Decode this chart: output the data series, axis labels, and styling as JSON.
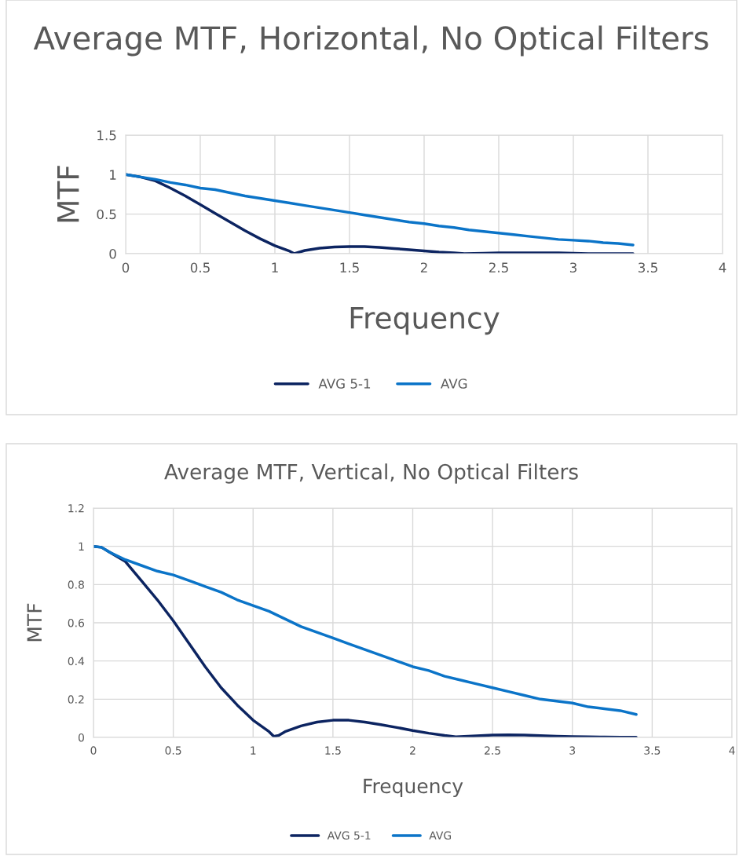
{
  "chart_data": [
    {
      "type": "line",
      "title": "Average MTF, Horizontal, No Optical Filters",
      "xlabel": "Frequency",
      "ylabel": "MTF",
      "xlim": [
        0,
        4
      ],
      "xticks": [
        0,
        0.5,
        1,
        1.5,
        2,
        2.5,
        3,
        3.5,
        4
      ],
      "ylim": [
        0,
        1.5
      ],
      "yticks": [
        0,
        0.5,
        1,
        1.5
      ],
      "grid": true,
      "legend": "bottom",
      "marker": "none",
      "line_style": "solid",
      "series": [
        {
          "name": "AVG 5-1",
          "color": "#0c2461",
          "x": [
            0,
            0.1,
            0.2,
            0.3,
            0.4,
            0.5,
            0.6,
            0.7,
            0.8,
            0.9,
            1.0,
            1.1,
            1.13,
            1.2,
            1.3,
            1.4,
            1.5,
            1.6,
            1.7,
            1.8,
            1.9,
            2.0,
            2.1,
            2.2,
            2.27,
            2.4,
            2.5,
            2.6,
            2.7,
            2.8,
            2.9,
            3.0,
            3.1,
            3.2,
            3.3,
            3.4
          ],
          "values": [
            1,
            0.97,
            0.92,
            0.83,
            0.73,
            0.62,
            0.51,
            0.4,
            0.29,
            0.19,
            0.1,
            0.03,
            0.0,
            0.04,
            0.07,
            0.085,
            0.09,
            0.09,
            0.08,
            0.065,
            0.05,
            0.035,
            0.02,
            0.01,
            0.0,
            0.005,
            0.01,
            0.01,
            0.01,
            0.01,
            0.01,
            0.005,
            0.0,
            0.0,
            0.0,
            0.0
          ]
        },
        {
          "name": "AVG",
          "color": "#0b74c8",
          "x": [
            0,
            0.1,
            0.2,
            0.3,
            0.4,
            0.5,
            0.6,
            0.7,
            0.8,
            0.9,
            1.0,
            1.1,
            1.2,
            1.3,
            1.4,
            1.5,
            1.6,
            1.7,
            1.8,
            1.9,
            2.0,
            2.1,
            2.2,
            2.3,
            2.4,
            2.5,
            2.6,
            2.7,
            2.8,
            2.9,
            3.0,
            3.1,
            3.2,
            3.3,
            3.4
          ],
          "values": [
            1,
            0.97,
            0.94,
            0.9,
            0.87,
            0.83,
            0.81,
            0.77,
            0.73,
            0.7,
            0.67,
            0.64,
            0.61,
            0.58,
            0.55,
            0.52,
            0.49,
            0.46,
            0.43,
            0.4,
            0.38,
            0.35,
            0.33,
            0.3,
            0.28,
            0.26,
            0.24,
            0.22,
            0.2,
            0.18,
            0.17,
            0.16,
            0.14,
            0.13,
            0.11
          ]
        }
      ]
    },
    {
      "type": "line",
      "title": "Average MTF, Vertical, No Optical Filters",
      "xlabel": "Frequency",
      "ylabel": "MTF",
      "xlim": [
        0,
        4
      ],
      "xticks": [
        0,
        0.5,
        1,
        1.5,
        2,
        2.5,
        3,
        3.5,
        4
      ],
      "ylim": [
        0,
        1.2
      ],
      "yticks": [
        0,
        0.2,
        0.4,
        0.6,
        0.8,
        1,
        1.2
      ],
      "grid": true,
      "legend": "bottom",
      "marker": "none",
      "line_style": "solid",
      "series": [
        {
          "name": "AVG 5-1",
          "color": "#0c2461",
          "x": [
            0,
            0.05,
            0.1,
            0.2,
            0.3,
            0.4,
            0.5,
            0.6,
            0.7,
            0.8,
            0.9,
            1.0,
            1.1,
            1.13,
            1.16,
            1.2,
            1.3,
            1.4,
            1.5,
            1.6,
            1.7,
            1.8,
            1.9,
            2.0,
            2.1,
            2.2,
            2.27,
            2.4,
            2.5,
            2.6,
            2.7,
            2.8,
            2.9,
            3.0,
            3.1,
            3.2,
            3.3,
            3.4
          ],
          "values": [
            1,
            0.995,
            0.97,
            0.92,
            0.82,
            0.72,
            0.61,
            0.49,
            0.37,
            0.26,
            0.17,
            0.09,
            0.03,
            0.005,
            0.01,
            0.03,
            0.06,
            0.08,
            0.09,
            0.09,
            0.08,
            0.067,
            0.052,
            0.036,
            0.022,
            0.01,
            0.003,
            0.008,
            0.012,
            0.013,
            0.012,
            0.009,
            0.006,
            0.004,
            0.003,
            0.002,
            0.001,
            0.001
          ]
        },
        {
          "name": "AVG",
          "color": "#0b74c8",
          "x": [
            0,
            0.05,
            0.1,
            0.2,
            0.3,
            0.4,
            0.5,
            0.6,
            0.7,
            0.8,
            0.9,
            1.0,
            1.1,
            1.2,
            1.3,
            1.4,
            1.5,
            1.6,
            1.7,
            1.8,
            1.9,
            2.0,
            2.1,
            2.2,
            2.3,
            2.4,
            2.5,
            2.6,
            2.7,
            2.8,
            2.9,
            3.0,
            3.1,
            3.2,
            3.3,
            3.4
          ],
          "values": [
            1,
            0.995,
            0.97,
            0.93,
            0.9,
            0.87,
            0.85,
            0.82,
            0.79,
            0.76,
            0.72,
            0.69,
            0.66,
            0.62,
            0.58,
            0.55,
            0.52,
            0.49,
            0.46,
            0.43,
            0.4,
            0.37,
            0.35,
            0.32,
            0.3,
            0.28,
            0.26,
            0.24,
            0.22,
            0.2,
            0.19,
            0.18,
            0.16,
            0.15,
            0.14,
            0.12
          ]
        }
      ]
    }
  ]
}
